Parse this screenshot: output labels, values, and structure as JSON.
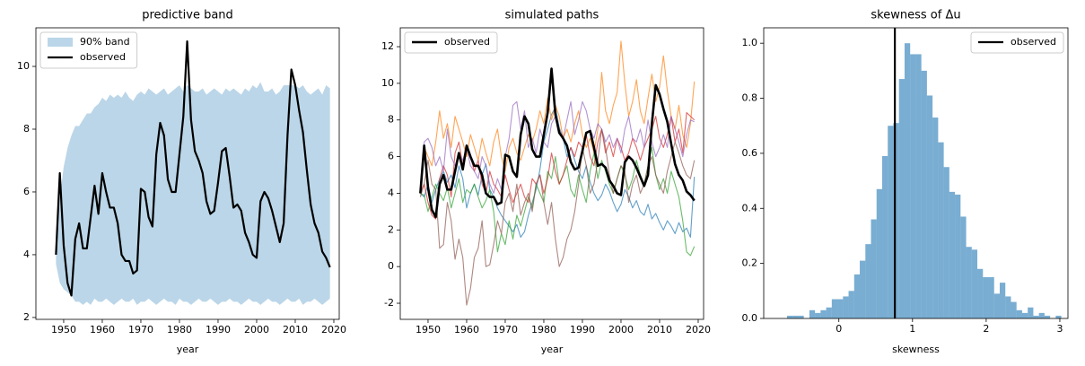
{
  "chart_data": [
    {
      "type": "band_line",
      "title": "predictive band",
      "xlabel": "year",
      "x": [
        1948,
        1949,
        1950,
        1951,
        1952,
        1953,
        1954,
        1955,
        1956,
        1957,
        1958,
        1959,
        1960,
        1961,
        1962,
        1963,
        1964,
        1965,
        1966,
        1967,
        1968,
        1969,
        1970,
        1971,
        1972,
        1973,
        1974,
        1975,
        1976,
        1977,
        1978,
        1979,
        1980,
        1981,
        1982,
        1983,
        1984,
        1985,
        1986,
        1987,
        1988,
        1989,
        1990,
        1991,
        1992,
        1993,
        1994,
        1995,
        1996,
        1997,
        1998,
        1999,
        2000,
        2001,
        2002,
        2003,
        2004,
        2005,
        2006,
        2007,
        2008,
        2009,
        2010,
        2011,
        2012,
        2013,
        2014,
        2015,
        2016,
        2017,
        2018,
        2019
      ],
      "band": {
        "name": "90% band",
        "color": "#1f77b4",
        "alpha": 0.3,
        "lower": [
          3.7,
          3.1,
          2.9,
          2.8,
          2.7,
          2.5,
          2.5,
          2.4,
          2.5,
          2.4,
          2.6,
          2.5,
          2.5,
          2.6,
          2.5,
          2.4,
          2.5,
          2.6,
          2.5,
          2.5,
          2.6,
          2.4,
          2.5,
          2.5,
          2.6,
          2.5,
          2.4,
          2.5,
          2.6,
          2.5,
          2.5,
          2.4,
          2.6,
          2.5,
          2.5,
          2.4,
          2.5,
          2.6,
          2.5,
          2.5,
          2.6,
          2.5,
          2.4,
          2.5,
          2.5,
          2.6,
          2.5,
          2.5,
          2.4,
          2.5,
          2.6,
          2.5,
          2.5,
          2.4,
          2.5,
          2.6,
          2.5,
          2.5,
          2.4,
          2.5,
          2.6,
          2.5,
          2.5,
          2.6,
          2.4,
          2.5,
          2.5,
          2.6,
          2.5,
          2.4,
          2.5,
          2.6
        ],
        "upper": [
          4.4,
          5.8,
          6.8,
          7.4,
          7.8,
          8.1,
          8.1,
          8.3,
          8.5,
          8.5,
          8.7,
          8.8,
          9.0,
          8.9,
          9.1,
          9.0,
          9.1,
          9.0,
          9.2,
          9.0,
          8.9,
          9.1,
          9.2,
          9.1,
          9.3,
          9.2,
          9.1,
          9.2,
          9.3,
          9.1,
          9.2,
          9.3,
          9.4,
          9.2,
          9.4,
          9.3,
          9.2,
          9.2,
          9.3,
          9.1,
          9.2,
          9.3,
          9.2,
          9.1,
          9.3,
          9.2,
          9.3,
          9.2,
          9.1,
          9.3,
          9.2,
          9.4,
          9.3,
          9.5,
          9.2,
          9.2,
          9.3,
          9.1,
          9.2,
          9.4,
          9.4,
          9.4,
          9.4,
          9.3,
          9.4,
          9.2,
          9.1,
          9.2,
          9.3,
          9.1,
          9.4,
          9.3
        ]
      },
      "series": [
        {
          "name": "observed",
          "color": "#000000",
          "width": 2.2,
          "values": [
            4.0,
            6.6,
            4.3,
            3.1,
            2.7,
            4.5,
            5.0,
            4.2,
            4.2,
            5.2,
            6.2,
            5.3,
            6.6,
            6.0,
            5.5,
            5.5,
            5.0,
            4.0,
            3.8,
            3.8,
            3.4,
            3.5,
            6.1,
            6.0,
            5.2,
            4.9,
            7.2,
            8.2,
            7.8,
            6.4,
            6.0,
            6.0,
            7.2,
            8.4,
            10.8,
            8.3,
            7.3,
            7.0,
            6.6,
            5.7,
            5.3,
            5.4,
            6.3,
            7.3,
            7.4,
            6.5,
            5.5,
            5.6,
            5.4,
            4.7,
            4.4,
            4.0,
            3.9,
            5.7,
            6.0,
            5.8,
            5.4,
            4.9,
            4.4,
            5.0,
            7.8,
            9.9,
            9.4,
            8.6,
            7.9,
            6.7,
            5.6,
            5.0,
            4.7,
            4.1,
            3.9,
            3.6
          ]
        }
      ],
      "xlim": [
        1942.8,
        2021.4
      ],
      "xticks": [
        1950,
        1960,
        1970,
        1980,
        1990,
        2000,
        2010,
        2020
      ],
      "ylim": [
        1.94,
        11.23
      ],
      "yticks": [
        2,
        4,
        6,
        8,
        10
      ],
      "legend": "upper left"
    },
    {
      "type": "line",
      "title": "simulated paths",
      "xlabel": "year",
      "x": [
        1948,
        1949,
        1950,
        1951,
        1952,
        1953,
        1954,
        1955,
        1956,
        1957,
        1958,
        1959,
        1960,
        1961,
        1962,
        1963,
        1964,
        1965,
        1966,
        1967,
        1968,
        1969,
        1970,
        1971,
        1972,
        1973,
        1974,
        1975,
        1976,
        1977,
        1978,
        1979,
        1980,
        1981,
        1982,
        1983,
        1984,
        1985,
        1986,
        1987,
        1988,
        1989,
        1990,
        1991,
        1992,
        1993,
        1994,
        1995,
        1996,
        1997,
        1998,
        1999,
        2000,
        2001,
        2002,
        2003,
        2004,
        2005,
        2006,
        2007,
        2008,
        2009,
        2010,
        2011,
        2012,
        2013,
        2014,
        2015,
        2016,
        2017,
        2018,
        2019
      ],
      "series": [
        {
          "color": "#1f77b4",
          "alpha": 0.7,
          "width": 1.1,
          "values": [
            4.0,
            3.8,
            4.5,
            3.5,
            4.2,
            4.8,
            5.2,
            4.6,
            5.0,
            4.3,
            5.5,
            4.8,
            3.2,
            4.0,
            4.5,
            3.9,
            5.0,
            5.6,
            4.2,
            3.8,
            3.2,
            2.8,
            2.5,
            2.2,
            1.9,
            2.3,
            1.6,
            1.9,
            2.8,
            3.5,
            4.2,
            5.3,
            6.8,
            7.5,
            8.3,
            8.7,
            7.6,
            7.0,
            6.0,
            6.5,
            5.8,
            5.2,
            4.8,
            5.5,
            4.6,
            4.0,
            3.6,
            3.9,
            4.5,
            4.1,
            3.5,
            3.0,
            3.4,
            4.2,
            3.8,
            3.2,
            3.6,
            3.0,
            2.8,
            3.4,
            2.6,
            2.9,
            2.4,
            2.0,
            2.5,
            2.2,
            1.8,
            2.4,
            1.9,
            2.1,
            1.6,
            4.9
          ]
        },
        {
          "color": "#ff7f0e",
          "alpha": 0.7,
          "width": 1.1,
          "values": [
            4.2,
            6.5,
            6.0,
            5.5,
            6.8,
            8.5,
            7.0,
            7.8,
            6.5,
            8.2,
            7.5,
            6.8,
            6.0,
            7.2,
            6.5,
            5.8,
            7.0,
            6.2,
            5.5,
            6.8,
            7.5,
            6.0,
            5.2,
            6.5,
            7.0,
            6.2,
            5.8,
            6.5,
            7.2,
            6.8,
            7.5,
            8.5,
            7.8,
            9.2,
            8.0,
            8.8,
            8.2,
            7.0,
            7.5,
            6.8,
            7.8,
            8.5,
            7.2,
            6.5,
            7.0,
            6.2,
            7.5,
            10.6,
            8.5,
            7.8,
            8.8,
            9.5,
            12.3,
            10.0,
            8.2,
            9.0,
            10.2,
            8.5,
            7.8,
            9.2,
            10.5,
            9.0,
            9.8,
            11.5,
            9.6,
            8.2,
            7.5,
            8.8,
            7.2,
            6.5,
            7.8,
            10.1
          ]
        },
        {
          "color": "#2ca02c",
          "alpha": 0.7,
          "width": 1.1,
          "values": [
            4.0,
            3.9,
            3.0,
            3.8,
            4.5,
            4.0,
            3.6,
            4.3,
            3.2,
            4.0,
            4.8,
            3.5,
            4.2,
            4.0,
            4.5,
            3.8,
            3.2,
            3.6,
            4.2,
            3.0,
            0.8,
            1.8,
            1.2,
            2.5,
            1.5,
            2.8,
            2.2,
            3.0,
            3.8,
            3.2,
            4.5,
            4.0,
            3.5,
            5.2,
            4.8,
            6.0,
            4.5,
            5.0,
            5.5,
            4.2,
            3.8,
            5.0,
            4.2,
            3.5,
            5.2,
            6.2,
            4.8,
            5.8,
            5.2,
            4.5,
            4.0,
            4.8,
            5.5,
            5.0,
            4.2,
            4.8,
            5.8,
            5.0,
            4.5,
            5.5,
            6.5,
            5.0,
            4.2,
            4.8,
            4.0,
            5.2,
            4.5,
            3.8,
            2.5,
            0.8,
            0.6,
            1.1
          ]
        },
        {
          "color": "#d62728",
          "alpha": 0.7,
          "width": 1.1,
          "values": [
            4.0,
            4.5,
            3.5,
            2.8,
            2.6,
            4.8,
            5.5,
            5.0,
            3.8,
            6.2,
            6.8,
            5.5,
            6.5,
            6.0,
            5.2,
            5.8,
            4.5,
            4.0,
            5.2,
            4.5,
            4.2,
            3.8,
            5.0,
            4.2,
            3.5,
            4.0,
            4.5,
            3.8,
            3.5,
            4.8,
            4.5,
            5.0,
            4.0,
            4.8,
            6.2,
            5.2,
            4.5,
            5.0,
            5.8,
            6.5,
            6.0,
            6.8,
            6.5,
            7.2,
            6.0,
            5.5,
            6.8,
            7.5,
            6.2,
            6.8,
            6.0,
            7.0,
            6.5,
            5.8,
            6.2,
            7.0,
            6.5,
            5.8,
            6.5,
            7.0,
            7.5,
            8.2,
            7.0,
            6.5,
            7.2,
            8.2,
            6.8,
            7.5,
            6.2,
            8.4,
            8.2,
            8.0
          ]
        },
        {
          "color": "#9467bd",
          "alpha": 0.7,
          "width": 1.1,
          "values": [
            4.0,
            6.8,
            7.0,
            6.5,
            5.5,
            6.0,
            5.2,
            7.5,
            6.0,
            5.5,
            6.2,
            5.8,
            6.5,
            5.5,
            5.2,
            4.8,
            6.0,
            5.5,
            4.5,
            4.0,
            4.8,
            4.2,
            6.0,
            7.0,
            8.8,
            9.0,
            7.5,
            8.5,
            6.5,
            7.0,
            6.2,
            7.5,
            6.8,
            6.5,
            7.8,
            8.2,
            7.5,
            7.0,
            8.0,
            9.0,
            7.2,
            8.0,
            9.0,
            8.5,
            7.5,
            7.0,
            7.8,
            7.5,
            6.8,
            7.2,
            6.5,
            7.0,
            6.2,
            7.5,
            8.2,
            7.0,
            6.8,
            7.5,
            6.5,
            8.0,
            6.8,
            6.0,
            6.5,
            7.2,
            6.5,
            8.2,
            7.5,
            6.8,
            6.0,
            7.2,
            8.0,
            7.9
          ]
        },
        {
          "color": "#8c564b",
          "alpha": 0.7,
          "width": 1.1,
          "values": [
            3.8,
            4.5,
            5.8,
            4.5,
            4.2,
            1.0,
            1.2,
            3.5,
            2.5,
            0.4,
            1.5,
            0.5,
            -2.1,
            -1.2,
            0.5,
            1.0,
            2.5,
            0.0,
            0.1,
            1.2,
            2.5,
            1.8,
            3.5,
            4.0,
            3.0,
            4.5,
            2.8,
            3.5,
            4.0,
            3.0,
            4.5,
            5.0,
            3.5,
            2.3,
            3.5,
            1.5,
            0.0,
            0.5,
            1.5,
            2.0,
            3.0,
            4.5,
            6.5,
            5.5,
            4.0,
            4.5,
            5.8,
            7.5,
            6.5,
            5.0,
            4.0,
            4.8,
            5.5,
            5.2,
            3.5,
            4.5,
            5.0,
            4.0,
            4.5,
            5.5,
            6.0,
            5.0,
            4.5,
            4.0,
            5.2,
            6.0,
            6.8,
            6.2,
            5.5,
            5.0,
            4.8,
            5.8
          ]
        },
        {
          "name": "observed",
          "color": "#000000",
          "alpha": 1,
          "width": 2.6,
          "values": [
            4.0,
            6.6,
            4.3,
            3.1,
            2.7,
            4.5,
            5.0,
            4.2,
            4.2,
            5.2,
            6.2,
            5.3,
            6.6,
            6.0,
            5.5,
            5.5,
            5.0,
            4.0,
            3.8,
            3.8,
            3.4,
            3.5,
            6.1,
            6.0,
            5.2,
            4.9,
            7.2,
            8.2,
            7.8,
            6.4,
            6.0,
            6.0,
            7.2,
            8.4,
            10.8,
            8.3,
            7.3,
            7.0,
            6.6,
            5.7,
            5.3,
            5.4,
            6.3,
            7.3,
            7.4,
            6.5,
            5.5,
            5.6,
            5.4,
            4.7,
            4.4,
            4.0,
            3.9,
            5.7,
            6.0,
            5.8,
            5.4,
            4.9,
            4.4,
            5.0,
            7.8,
            9.9,
            9.4,
            8.6,
            7.9,
            6.7,
            5.6,
            5.0,
            4.7,
            4.1,
            3.9,
            3.6
          ]
        }
      ],
      "xlim": [
        1942.8,
        2021.4
      ],
      "xticks": [
        1950,
        1960,
        1970,
        1980,
        1990,
        2000,
        2010,
        2020
      ],
      "ylim": [
        -2.88,
        13.03
      ],
      "yticks": [
        -2,
        0,
        2,
        4,
        6,
        8,
        10,
        12
      ],
      "legend": "upper left"
    },
    {
      "type": "histogram",
      "title": "skewness of Δu",
      "xlabel": "skewness",
      "bins": [
        -0.78,
        -0.704,
        -0.628,
        -0.552,
        -0.476,
        -0.4,
        -0.324,
        -0.248,
        -0.172,
        -0.096,
        -0.02,
        0.056,
        0.132,
        0.208,
        0.284,
        0.36,
        0.436,
        0.512,
        0.588,
        0.664,
        0.74,
        0.816,
        0.892,
        0.968,
        1.044,
        1.12,
        1.196,
        1.272,
        1.348,
        1.424,
        1.5,
        1.576,
        1.652,
        1.728,
        1.804,
        1.88,
        1.956,
        2.032,
        2.108,
        2.184,
        2.26,
        2.336,
        2.412,
        2.488,
        2.564,
        2.64,
        2.716,
        2.792,
        2.868,
        2.944,
        3.02
      ],
      "values": [
        0.0,
        0.01,
        0.01,
        0.01,
        0.0,
        0.03,
        0.02,
        0.03,
        0.04,
        0.07,
        0.07,
        0.08,
        0.1,
        0.16,
        0.21,
        0.27,
        0.36,
        0.47,
        0.59,
        0.7,
        0.71,
        0.87,
        1.0,
        0.96,
        0.96,
        0.9,
        0.81,
        0.73,
        0.64,
        0.55,
        0.46,
        0.45,
        0.37,
        0.26,
        0.25,
        0.18,
        0.15,
        0.15,
        0.09,
        0.13,
        0.08,
        0.06,
        0.03,
        0.02,
        0.04,
        0.01,
        0.02,
        0.01,
        0.0,
        0.01
      ],
      "color": "#1f77b4",
      "alpha": 0.6,
      "vline": {
        "name": "observed",
        "value": 0.76,
        "color": "#000000",
        "width": 2.2
      },
      "xlim": [
        -1.02,
        3.11
      ],
      "xticks": [
        0,
        1,
        2,
        3
      ],
      "ylim": [
        0,
        1.056
      ],
      "yticks": [
        {
          "value": 0,
          "label": "0.0"
        },
        {
          "value": 0.2,
          "label": "0.2"
        },
        {
          "value": 0.4,
          "label": "0.4"
        },
        {
          "value": 0.6,
          "label": "0.6"
        },
        {
          "value": 0.8,
          "label": "0.8"
        },
        {
          "value": 1.0,
          "label": "1.0"
        }
      ],
      "legend": "upper right"
    }
  ]
}
